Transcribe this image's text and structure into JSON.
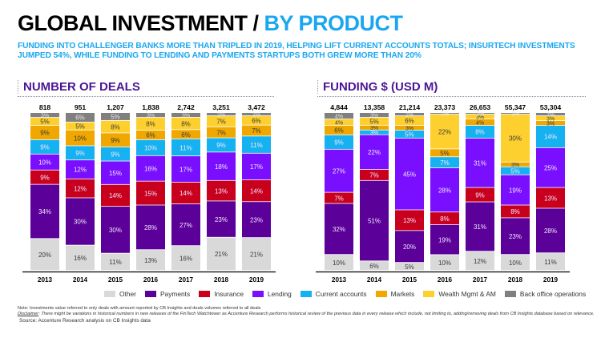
{
  "header": {
    "title_main": "GLOBAL INVESTMENT / ",
    "title_accent": "BY PRODUCT",
    "subtitle": "FUNDING INTO CHALLENGER BANKS  MORE THAN TRIPLED IN 2019, HELPING LIFT CURRENT ACCOUNTS TOTALS; INSURTECH INVESTMENTS JUMPED 54%, WHILE FUNDING TO LENDING AND PAYMENTS STARTUPS BOTH GREW MORE THAN 20%"
  },
  "colors": {
    "Other": "#d9d9d9",
    "Payments": "#5b0098",
    "Insurance": "#c8001e",
    "Lending": "#7a0fff",
    "Current accounts": "#16b1f0",
    "Markets": "#f0a800",
    "Wealth Mgmt & AM": "#fdd02f",
    "Back office operations": "#808080"
  },
  "legend": [
    {
      "label": "Other",
      "key": "Other"
    },
    {
      "label": "Payments",
      "key": "Payments"
    },
    {
      "label": "Insurance",
      "key": "Insurance"
    },
    {
      "label": "Lending",
      "key": "Lending"
    },
    {
      "label": "Current accounts",
      "key": "Current accounts"
    },
    {
      "label": "Markets",
      "key": "Markets"
    },
    {
      "label": "Wealth Mgmt & AM",
      "key": "Wealth Mgmt & AM"
    },
    {
      "label": "Back office operations",
      "key": "Back office operations"
    }
  ],
  "chart_data": [
    {
      "type": "bar",
      "stacked": true,
      "normalized": "100%",
      "title": "NUMBER OF DEALS",
      "xlabel": "",
      "ylabel": "",
      "categories": [
        "2013",
        "2014",
        "2015",
        "2016",
        "2017",
        "2018",
        "2019"
      ],
      "totals": [
        "818",
        "951",
        "1,207",
        "1,838",
        "2,742",
        "3,251",
        "3,472"
      ],
      "series": [
        {
          "name": "Other",
          "values": [
            20,
            16,
            11,
            13,
            16,
            21,
            21
          ]
        },
        {
          "name": "Payments",
          "values": [
            34,
            30,
            30,
            28,
            27,
            23,
            23
          ]
        },
        {
          "name": "Insurance",
          "values": [
            9,
            12,
            14,
            15,
            14,
            13,
            14
          ]
        },
        {
          "name": "Lending",
          "values": [
            10,
            12,
            15,
            16,
            17,
            18,
            17
          ]
        },
        {
          "name": "Current accounts",
          "values": [
            9,
            9,
            9,
            10,
            11,
            9,
            11
          ]
        },
        {
          "name": "Markets",
          "values": [
            9,
            10,
            9,
            6,
            6,
            7,
            7
          ]
        },
        {
          "name": "Wealth Mgmt & AM",
          "values": [
            5,
            5,
            8,
            8,
            8,
            7,
            6
          ]
        },
        {
          "name": "Back office operations",
          "values": [
            3,
            6,
            5,
            3,
            3,
            2,
            2
          ]
        }
      ],
      "value_suffix": "%",
      "legend": "bottom",
      "grid": false
    },
    {
      "type": "bar",
      "stacked": true,
      "normalized": "100%",
      "title": "FUNDING $ (USD M)",
      "xlabel": "",
      "ylabel": "",
      "categories": [
        "2013",
        "2014",
        "2015",
        "2016",
        "2017",
        "2018",
        "2019"
      ],
      "totals": [
        "4,844",
        "13,358",
        "21,214",
        "23,373",
        "26,653",
        "55,347",
        "53,304"
      ],
      "series": [
        {
          "name": "Other",
          "values": [
            10,
            6,
            5,
            10,
            12,
            10,
            11
          ]
        },
        {
          "name": "Payments",
          "values": [
            32,
            51,
            20,
            19,
            31,
            23,
            28
          ]
        },
        {
          "name": "Insurance",
          "values": [
            7,
            7,
            13,
            8,
            9,
            8,
            13
          ]
        },
        {
          "name": "Lending",
          "values": [
            27,
            22,
            45,
            28,
            31,
            19,
            25
          ]
        },
        {
          "name": "Current accounts",
          "values": [
            9,
            3,
            5,
            7,
            8,
            5,
            14
          ]
        },
        {
          "name": "Markets",
          "values": [
            6,
            3,
            3,
            5,
            4,
            3,
            3
          ]
        },
        {
          "name": "Wealth Mgmt & AM",
          "values": [
            4,
            5,
            6,
            22,
            3,
            30,
            3
          ]
        },
        {
          "name": "Back office operations",
          "values": [
            4,
            3,
            2,
            1,
            1,
            1,
            2
          ]
        }
      ],
      "value_suffix": "%",
      "legend": "bottom",
      "grid": false
    }
  ],
  "notes": {
    "note": "Note: Investments value referred to only deals with amount reported by CB Insights and deals volumes referred to all deals",
    "disclaimer_label": "Disclaimer",
    "disclaimer_text": ": There might be variations in historical numbers in new releases of the FinTech Watchtower as Accenture Research performs historical review of the previous data in every release which include, not limiting to, adding/removing deals from CB Insights database based on relevance.",
    "source": "Source: Accenture Research analysis on CB Insights data"
  }
}
